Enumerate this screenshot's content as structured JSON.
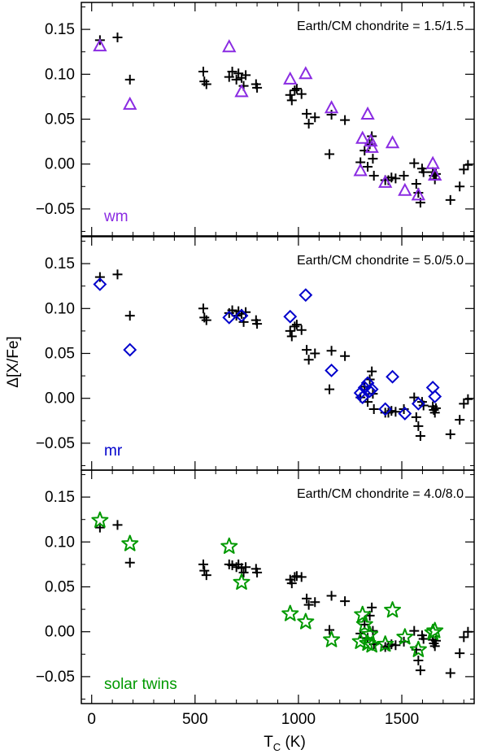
{
  "figure": {
    "ylabel": "Δ[X/Fe]",
    "xlabel_main": "T",
    "xlabel_sub": "C",
    "xlabel_unit": " (K)",
    "xlim": [
      -50,
      1850
    ],
    "x_ticks": [
      0,
      500,
      1000,
      1500
    ],
    "x_tick_labels": [
      "0",
      "500",
      "1000",
      "1500"
    ],
    "marker_plus_color": "#000000"
  },
  "chart_data": [
    {
      "type": "scatter",
      "panel": "top",
      "annotation": "Earth/CM chondrite = 1.5/1.5",
      "tag": "wm",
      "tag_color": "#8a2be2",
      "marker": "triangle",
      "ylim": [
        -0.08,
        0.18
      ],
      "y_ticks": [
        -0.05,
        0.0,
        0.05,
        0.1,
        0.15
      ],
      "y_tick_labels": [
        "−0.05",
        "0.00",
        "0.05",
        "0.10",
        "0.15"
      ],
      "series": [
        {
          "marker": "plus",
          "color": "#000000",
          "points": [
            [
              40,
              0.138
            ],
            [
              125,
              0.141
            ],
            [
              185,
              0.094
            ],
            [
              540,
              0.103
            ],
            [
              545,
              0.092
            ],
            [
              555,
              0.089
            ],
            [
              665,
              0.097
            ],
            [
              680,
              0.103
            ],
            [
              700,
              0.094
            ],
            [
              710,
              0.101
            ],
            [
              725,
              0.096
            ],
            [
              735,
              0.087
            ],
            [
              745,
              0.099
            ],
            [
              795,
              0.089
            ],
            [
              800,
              0.085
            ],
            [
              960,
              0.077
            ],
            [
              968,
              0.071
            ],
            [
              982,
              0.082
            ],
            [
              992,
              0.084
            ],
            [
              1015,
              0.078
            ],
            [
              1040,
              0.056
            ],
            [
              1050,
              0.045
            ],
            [
              1080,
              0.052
            ],
            [
              1150,
              0.011
            ],
            [
              1160,
              0.055
            ],
            [
              1225,
              0.049
            ],
            [
              1300,
              0.002
            ],
            [
              1320,
              0.015
            ],
            [
              1335,
              -0.003
            ],
            [
              1345,
              0.022
            ],
            [
              1355,
              0.031
            ],
            [
              1360,
              0.006
            ],
            [
              1365,
              -0.013
            ],
            [
              1420,
              -0.018
            ],
            [
              1435,
              -0.018
            ],
            [
              1450,
              -0.015
            ],
            [
              1470,
              -0.016
            ],
            [
              1510,
              -0.013
            ],
            [
              1560,
              0.001
            ],
            [
              1570,
              -0.022
            ],
            [
              1580,
              -0.032
            ],
            [
              1590,
              -0.043
            ],
            [
              1598,
              -0.005
            ],
            [
              1605,
              -0.009
            ],
            [
              1650,
              -0.009
            ],
            [
              1655,
              -0.013
            ],
            [
              1660,
              -0.017
            ],
            [
              1665,
              -0.011
            ],
            [
              1735,
              -0.04
            ],
            [
              1780,
              -0.025
            ],
            [
              1800,
              -0.006
            ],
            [
              1820,
              -0.001
            ]
          ]
        },
        {
          "marker": "triangle",
          "color": "#8a2be2",
          "points": [
            [
              40,
              0.131
            ],
            [
              185,
              0.066
            ],
            [
              665,
              0.13
            ],
            [
              725,
              0.08
            ],
            [
              960,
              0.094
            ],
            [
              1035,
              0.1
            ],
            [
              1160,
              0.062
            ],
            [
              1300,
              -0.008
            ],
            [
              1310,
              0.028
            ],
            [
              1335,
              0.055
            ],
            [
              1350,
              0.025
            ],
            [
              1355,
              0.018
            ],
            [
              1420,
              -0.021
            ],
            [
              1455,
              0.023
            ],
            [
              1515,
              -0.03
            ],
            [
              1580,
              -0.035
            ],
            [
              1650,
              0.0
            ],
            [
              1660,
              -0.013
            ]
          ]
        }
      ]
    },
    {
      "type": "scatter",
      "panel": "middle",
      "annotation": "Earth/CM chondrite = 5.0/5.0",
      "tag": "mr",
      "tag_color": "#0000cc",
      "marker": "diamond",
      "ylim": [
        -0.08,
        0.18
      ],
      "y_ticks": [
        -0.05,
        0.0,
        0.05,
        0.1,
        0.15
      ],
      "y_tick_labels": [
        "−0.05",
        "0.00",
        "0.05",
        "0.10",
        "0.15"
      ],
      "series": [
        {
          "marker": "plus",
          "color": "#000000",
          "points": [
            [
              40,
              0.135
            ],
            [
              125,
              0.138
            ],
            [
              185,
              0.092
            ],
            [
              540,
              0.1
            ],
            [
              545,
              0.09
            ],
            [
              555,
              0.087
            ],
            [
              665,
              0.095
            ],
            [
              680,
              0.098
            ],
            [
              700,
              0.092
            ],
            [
              710,
              0.097
            ],
            [
              725,
              0.094
            ],
            [
              735,
              0.085
            ],
            [
              745,
              0.096
            ],
            [
              795,
              0.087
            ],
            [
              800,
              0.083
            ],
            [
              960,
              0.075
            ],
            [
              968,
              0.069
            ],
            [
              982,
              0.08
            ],
            [
              992,
              0.082
            ],
            [
              1015,
              0.076
            ],
            [
              1040,
              0.054
            ],
            [
              1050,
              0.043
            ],
            [
              1080,
              0.05
            ],
            [
              1150,
              0.01
            ],
            [
              1160,
              0.053
            ],
            [
              1225,
              0.047
            ],
            [
              1300,
              0.001
            ],
            [
              1320,
              0.013
            ],
            [
              1335,
              -0.004
            ],
            [
              1345,
              0.021
            ],
            [
              1355,
              0.03
            ],
            [
              1360,
              0.005
            ],
            [
              1365,
              -0.012
            ],
            [
              1420,
              -0.016
            ],
            [
              1435,
              -0.016
            ],
            [
              1450,
              -0.014
            ],
            [
              1470,
              -0.015
            ],
            [
              1510,
              -0.012
            ],
            [
              1560,
              0.001
            ],
            [
              1570,
              -0.021
            ],
            [
              1580,
              -0.031
            ],
            [
              1590,
              -0.042
            ],
            [
              1598,
              -0.004
            ],
            [
              1605,
              -0.008
            ],
            [
              1650,
              -0.009
            ],
            [
              1655,
              -0.013
            ],
            [
              1660,
              -0.016
            ],
            [
              1665,
              -0.011
            ],
            [
              1735,
              -0.04
            ],
            [
              1780,
              -0.024
            ],
            [
              1800,
              -0.006
            ],
            [
              1820,
              -0.001
            ]
          ]
        },
        {
          "marker": "diamond",
          "color": "#0000cc",
          "points": [
            [
              40,
              0.127
            ],
            [
              185,
              0.054
            ],
            [
              665,
              0.09
            ],
            [
              725,
              0.092
            ],
            [
              960,
              0.091
            ],
            [
              1035,
              0.115
            ],
            [
              1160,
              0.031
            ],
            [
              1300,
              0.006
            ],
            [
              1310,
              0.001
            ],
            [
              1320,
              0.012
            ],
            [
              1335,
              0.017
            ],
            [
              1345,
              0.008
            ],
            [
              1355,
              0.01
            ],
            [
              1420,
              -0.012
            ],
            [
              1455,
              0.024
            ],
            [
              1515,
              -0.017
            ],
            [
              1580,
              -0.006
            ],
            [
              1650,
              0.012
            ],
            [
              1660,
              0.002
            ]
          ]
        }
      ]
    },
    {
      "type": "scatter",
      "panel": "bottom",
      "annotation": "Earth/CM chondrite = 4.0/8.0",
      "tag": "solar twins",
      "tag_color": "#009900",
      "marker": "star",
      "ylim": [
        -0.08,
        0.18
      ],
      "y_ticks": [
        -0.05,
        0.0,
        0.05,
        0.1,
        0.15
      ],
      "y_tick_labels": [
        "−0.05",
        "0.00",
        "0.05",
        "0.10",
        "0.15"
      ],
      "series": [
        {
          "marker": "plus",
          "color": "#000000",
          "points": [
            [
              40,
              0.116
            ],
            [
              125,
              0.119
            ],
            [
              185,
              0.077
            ],
            [
              540,
              0.075
            ],
            [
              545,
              0.068
            ],
            [
              555,
              0.063
            ],
            [
              665,
              0.075
            ],
            [
              680,
              0.074
            ],
            [
              700,
              0.072
            ],
            [
              710,
              0.075
            ],
            [
              725,
              0.071
            ],
            [
              735,
              0.066
            ],
            [
              745,
              0.072
            ],
            [
              795,
              0.07
            ],
            [
              800,
              0.066
            ],
            [
              960,
              0.058
            ],
            [
              968,
              0.054
            ],
            [
              982,
              0.061
            ],
            [
              992,
              0.062
            ],
            [
              1015,
              0.061
            ],
            [
              1040,
              0.037
            ],
            [
              1050,
              0.03
            ],
            [
              1080,
              0.033
            ],
            [
              1150,
              0.002
            ],
            [
              1160,
              0.04
            ],
            [
              1225,
              0.034
            ],
            [
              1300,
              -0.002
            ],
            [
              1320,
              0.008
            ],
            [
              1335,
              -0.007
            ],
            [
              1345,
              0.018
            ],
            [
              1355,
              0.027
            ],
            [
              1360,
              0.001
            ],
            [
              1365,
              -0.014
            ],
            [
              1420,
              -0.017
            ],
            [
              1435,
              -0.016
            ],
            [
              1450,
              -0.014
            ],
            [
              1470,
              -0.015
            ],
            [
              1510,
              -0.011
            ],
            [
              1560,
              0.001
            ],
            [
              1570,
              -0.02
            ],
            [
              1580,
              -0.032
            ],
            [
              1590,
              -0.043
            ],
            [
              1598,
              -0.004
            ],
            [
              1605,
              -0.008
            ],
            [
              1650,
              -0.009
            ],
            [
              1655,
              -0.013
            ],
            [
              1660,
              -0.016
            ],
            [
              1665,
              -0.01
            ],
            [
              1735,
              -0.046
            ],
            [
              1780,
              -0.024
            ],
            [
              1800,
              -0.006
            ],
            [
              1820,
              0.0
            ]
          ]
        },
        {
          "marker": "star",
          "color": "#009900",
          "points": [
            [
              40,
              0.124
            ],
            [
              185,
              0.098
            ],
            [
              665,
              0.095
            ],
            [
              725,
              0.055
            ],
            [
              960,
              0.02
            ],
            [
              1035,
              0.011
            ],
            [
              1160,
              -0.009
            ],
            [
              1300,
              -0.011
            ],
            [
              1310,
              0.019
            ],
            [
              1320,
              0.008
            ],
            [
              1335,
              -0.013
            ],
            [
              1345,
              -0.003
            ],
            [
              1355,
              -0.015
            ],
            [
              1420,
              -0.014
            ],
            [
              1455,
              0.024
            ],
            [
              1515,
              -0.006
            ],
            [
              1580,
              -0.02
            ],
            [
              1650,
              -0.001
            ],
            [
              1660,
              0.001
            ]
          ]
        }
      ]
    }
  ]
}
